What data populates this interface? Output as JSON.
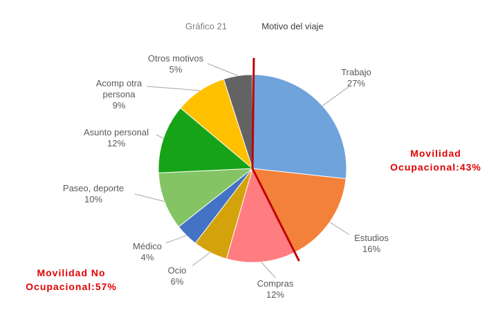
{
  "chart_data": {
    "type": "pie",
    "subtitle": "Gráfico 21",
    "title": "Motivo del viaje",
    "categories": [
      "Trabajo",
      "Estudios",
      "Compras",
      "Ocio",
      "Médico",
      "Paseo, deporte",
      "Asunto personal",
      "Acomp otra persona",
      "Otros motivos"
    ],
    "values": [
      27,
      16,
      12,
      6,
      4,
      10,
      12,
      9,
      5
    ],
    "value_labels": [
      "27%",
      "16%",
      "12%",
      "6%",
      "4%",
      "10%",
      "12%",
      "9%",
      "5%"
    ],
    "colors": [
      "#6fa3dc",
      "#f4813a",
      "#ff7c80",
      "#d4a20a",
      "#4472c4",
      "#84c465",
      "#17a317",
      "#ffc000",
      "#636363"
    ],
    "annotations": [
      "Movilidad Ocupacional:43%",
      "Movilidad No Ocupacional:57%"
    ]
  }
}
